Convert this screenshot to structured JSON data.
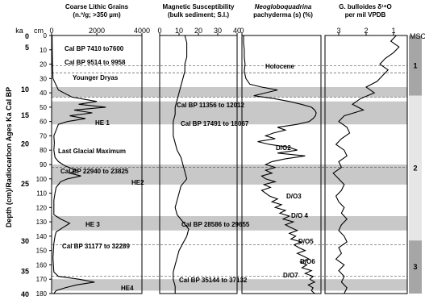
{
  "chart_data": {
    "type": "line",
    "depth_axis": {
      "label": "Depth (cm)/Radiocarbon Ages Ka Cal  BP",
      "depth_unit": "cm",
      "age_unit": "ka",
      "range": [
        0,
        180
      ],
      "depth_ticks": [
        "0",
        "10",
        "20",
        "30",
        "40",
        "50",
        "60",
        "70",
        "80",
        "90",
        "100",
        "110",
        "120",
        "130",
        "140",
        "150",
        "160",
        "170",
        "180"
      ],
      "age_ticks": [
        {
          "label": "0",
          "depth": 0
        },
        {
          "label": "5",
          "depth": 8
        },
        {
          "label": "10",
          "depth": 37
        },
        {
          "label": "15",
          "depth": 55
        },
        {
          "label": "20",
          "depth": 75
        },
        {
          "label": "25",
          "depth": 103
        },
        {
          "label": "30",
          "depth": 143
        },
        {
          "label": "35",
          "depth": 164
        },
        {
          "label": "40",
          "depth": 180
        }
      ]
    },
    "shaded_bands": [
      [
        36,
        43
      ],
      [
        46,
        62
      ],
      [
        90,
        104
      ],
      [
        126,
        136
      ],
      [
        170,
        178
      ]
    ],
    "dashed_lines": [
      21,
      26,
      43,
      92,
      146,
      168
    ],
    "panels": [
      {
        "title_lines": [
          "Coarse Lithic Grains",
          "(n.º/g; >350 µm)"
        ],
        "xlim": [
          0,
          4000
        ],
        "xticks": [
          "0",
          "2000",
          "4000"
        ],
        "series": {
          "depth": [
            0,
            10,
            20,
            30,
            38,
            43,
            46,
            48,
            50,
            52,
            54,
            56,
            58,
            60,
            62,
            66,
            70,
            75,
            80,
            85,
            88,
            91,
            94,
            96,
            98,
            100,
            102,
            104,
            106,
            110,
            115,
            120,
            125,
            128,
            131,
            134,
            137,
            140,
            145,
            150,
            155,
            160,
            165,
            168,
            170,
            172,
            174,
            176,
            178,
            180
          ],
          "value": [
            20,
            30,
            40,
            60,
            300,
            900,
            2000,
            1200,
            2400,
            1000,
            1800,
            800,
            1500,
            700,
            300,
            200,
            100,
            120,
            100,
            150,
            300,
            600,
            1100,
            800,
            1300,
            700,
            400,
            300,
            200,
            150,
            100,
            100,
            100,
            400,
            800,
            500,
            200,
            150,
            100,
            80,
            60,
            80,
            100,
            300,
            1200,
            1900,
            1100,
            600,
            200,
            100
          ]
        }
      },
      {
        "title_lines": [
          "Magnetic Susceptibility",
          "(bulk sediment; S.I.)"
        ],
        "xlim": [
          0,
          40
        ],
        "xticks": [
          "0",
          "10",
          "20",
          "30",
          "40"
        ],
        "series": {
          "depth": [
            0,
            5,
            10,
            15,
            20,
            25,
            30,
            35,
            40,
            45,
            50,
            55,
            60,
            65,
            70,
            75,
            80,
            85,
            90,
            95,
            100,
            105,
            110,
            115,
            120,
            125,
            130,
            135,
            140,
            145,
            150,
            155,
            160,
            165,
            170,
            175,
            180
          ],
          "value": [
            13,
            14,
            14,
            14,
            13,
            13,
            12,
            11,
            10,
            9,
            8,
            8,
            7,
            7,
            7,
            8,
            9,
            11,
            12,
            13,
            14,
            11,
            10,
            9,
            8,
            9,
            12,
            15,
            14,
            12,
            10,
            9,
            8,
            7,
            7,
            8,
            8
          ]
        }
      },
      {
        "title_lines": [
          "Neogloboquadrina",
          "pachyderma (s) (%)"
        ],
        "title_italic": [
          true,
          false
        ],
        "xlim": [
          0,
          100
        ],
        "xticks": [
          "0"
        ],
        "series": {
          "depth": [
            0,
            5,
            10,
            15,
            20,
            25,
            30,
            34,
            36,
            38,
            40,
            42,
            44,
            46,
            48,
            50,
            52,
            54,
            56,
            58,
            60,
            62,
            64,
            66,
            68,
            70,
            72,
            74,
            76,
            78,
            80,
            82,
            84,
            86,
            88,
            90,
            92,
            94,
            96,
            98,
            100,
            102,
            104,
            106,
            108,
            110,
            112,
            114,
            116,
            118,
            120,
            122,
            124,
            126,
            128,
            130,
            132,
            134,
            136,
            138,
            140,
            142,
            144,
            146,
            148,
            150,
            152,
            154,
            156,
            158,
            160,
            162,
            164,
            166,
            168,
            170,
            172,
            174,
            176,
            178,
            180
          ],
          "value": [
            2,
            2,
            3,
            3,
            4,
            3,
            5,
            10,
            25,
            45,
            30,
            15,
            40,
            60,
            75,
            88,
            92,
            94,
            93,
            90,
            85,
            70,
            45,
            55,
            40,
            30,
            42,
            20,
            35,
            60,
            70,
            45,
            80,
            55,
            38,
            30,
            42,
            30,
            38,
            25,
            30,
            42,
            28,
            36,
            25,
            30,
            35,
            45,
            38,
            50,
            42,
            55,
            48,
            60,
            52,
            65,
            55,
            62,
            70,
            60,
            68,
            62,
            75,
            66,
            72,
            80,
            70,
            78,
            85,
            74,
            82,
            76,
            88,
            80,
            90,
            86,
            92,
            84,
            90,
            88,
            92
          ]
        }
      },
      {
        "title_lines": [
          "G. bulloides  δ¹⁸O",
          "per mil VPDB"
        ],
        "title_italic": [
          true,
          false
        ],
        "xlim": [
          3.5,
          0.5
        ],
        "xticks": [
          "3",
          "2",
          "1"
        ],
        "series": {
          "depth": [
            0,
            4,
            8,
            12,
            16,
            20,
            24,
            28,
            32,
            36,
            40,
            44,
            48,
            52,
            56,
            60,
            64,
            68,
            72,
            76,
            80,
            84,
            88,
            92,
            96,
            100,
            104,
            108,
            112,
            116,
            120,
            124,
            128,
            132,
            136,
            140,
            144,
            148,
            152,
            156,
            160,
            164,
            168,
            172,
            176,
            180
          ],
          "value": [
            0.9,
            1.1,
            0.8,
            1.0,
            1.3,
            1.5,
            1.2,
            1.4,
            1.6,
            2.0,
            1.7,
            2.2,
            2.5,
            2.1,
            2.8,
            3.0,
            2.7,
            2.6,
            2.9,
            3.1,
            2.8,
            2.7,
            3.0,
            2.9,
            3.2,
            3.0,
            2.8,
            2.9,
            3.1,
            3.0,
            2.8,
            2.9,
            2.7,
            2.9,
            3.0,
            2.8,
            2.7,
            3.0,
            2.9,
            3.1,
            2.8,
            3.0,
            2.8,
            2.9,
            2.7,
            2.8
          ]
        }
      }
    ],
    "annotations": {
      "cal_7410": "Cal BP 7410 to7600",
      "cal_9514": "Cal BP 9514 to 9958",
      "younger_dryas": "Younger Dryas",
      "cal_11356": "Cal BP 11356 to 12012",
      "he1": "HE 1",
      "cal_17491": "Cal BP 17491 to 18067",
      "lgm": "Last Glacial Maximum",
      "cal_22940": "Cal BP 22940 to 23825",
      "he2": "HE2",
      "he3": "HE 3",
      "cal_28586": "Cal BP 28586 to 29655",
      "cal_31177": "Cal BP 31177 to 32289",
      "cal_35144": "Cal BP 35144 to 37132",
      "he4": "HE4",
      "holocene": "Holocene",
      "do2": "D/O2",
      "do3": "D/O3",
      "do4": "D/O 4",
      "do5": "D/O5",
      "do6": "D/O6",
      "do7": "D/O7"
    },
    "msc": {
      "label": "MSC",
      "zones": [
        {
          "label": "1",
          "from": 0,
          "to": 42,
          "color": "#a6a6a6"
        },
        {
          "label": "2",
          "from": 42,
          "to": 143,
          "color": "#e6e6e6"
        },
        {
          "label": "3",
          "from": 143,
          "to": 180,
          "color": "#a6a6a6"
        }
      ]
    }
  }
}
